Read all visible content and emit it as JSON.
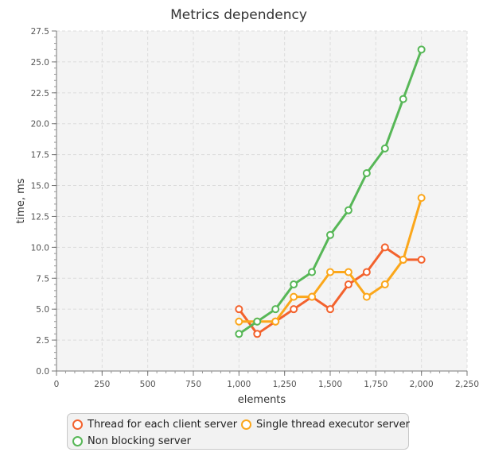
{
  "chart_data": {
    "type": "line",
    "title": "Metrics dependency",
    "xlabel": "elements",
    "ylabel": "time, ms",
    "xlim": [
      0,
      2250
    ],
    "ylim": [
      0,
      27.5
    ],
    "x_ticks": [
      0,
      250,
      500,
      750,
      1000,
      1250,
      1500,
      1750,
      2000,
      2250
    ],
    "x_tick_labels": [
      "0",
      "250",
      "500",
      "750",
      "1,000",
      "1,250",
      "1,500",
      "1,750",
      "2,000",
      "2,250"
    ],
    "y_ticks": [
      0,
      2.5,
      5,
      7.5,
      10,
      12.5,
      15,
      17.5,
      20,
      22.5,
      25,
      27.5
    ],
    "y_tick_labels": [
      "0.0",
      "2.5",
      "5.0",
      "7.5",
      "10.0",
      "12.5",
      "15.0",
      "17.5",
      "20.0",
      "22.5",
      "25.0",
      "27.5"
    ],
    "grid": true,
    "legend_position": "bottom",
    "x": [
      1000,
      1100,
      1200,
      1300,
      1400,
      1500,
      1600,
      1700,
      1800,
      1900,
      2000
    ],
    "series": [
      {
        "name": "Thread for each client server",
        "color": "#f3622d",
        "values": [
          5,
          3,
          4,
          5,
          6,
          5,
          7,
          8,
          10,
          9,
          9
        ]
      },
      {
        "name": "Single thread executor server",
        "color": "#fba71b",
        "values": [
          4,
          4,
          4,
          6,
          6,
          8,
          8,
          6,
          7,
          9,
          14
        ]
      },
      {
        "name": "Non blocking server",
        "color": "#57b757",
        "values": [
          3,
          4,
          5,
          7,
          8,
          11,
          13,
          16,
          18,
          22,
          26
        ]
      }
    ]
  }
}
